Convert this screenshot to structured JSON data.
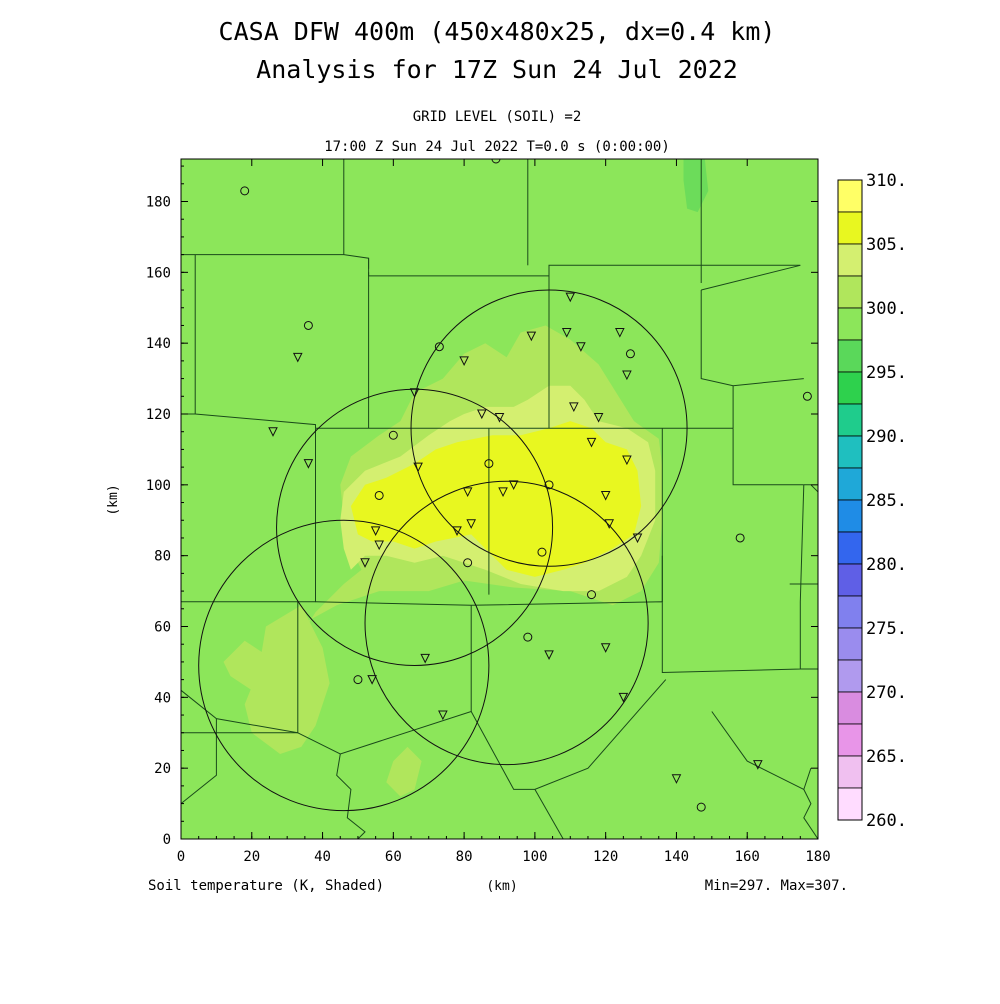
{
  "header": {
    "title_line1": "CASA DFW 400m (450x480x25, dx=0.4 km)",
    "title_line2": "Analysis for 17Z Sun 24 Jul 2022",
    "grid_level": "GRID LEVEL (SOIL) =2",
    "valid_time": "17:00 Z Sun 24 Jul 2022   T=0.0 s (0:00:00)"
  },
  "footer": {
    "field_label": "Soil temperature (K, Shaded)",
    "x_unit": "(km)",
    "minmax": "Min=297. Max=307."
  },
  "chart_data": {
    "type": "heatmap",
    "xlabel": "(km)",
    "ylabel": "(km)",
    "xlim": [
      0,
      180
    ],
    "ylim": [
      0,
      192
    ],
    "x_ticks": [
      0,
      20,
      40,
      60,
      80,
      100,
      120,
      140,
      160,
      180
    ],
    "y_ticks": [
      0,
      20,
      40,
      60,
      80,
      100,
      120,
      140,
      160,
      180
    ],
    "colorbar": {
      "labels": [
        "310.",
        "305.",
        "305.",
        "300.",
        "300.",
        "295.",
        "295.",
        "290.",
        "290.",
        "285.",
        "285.",
        "280.",
        "280.",
        "275.",
        "275.",
        "270.",
        "270.",
        "265.",
        "265.",
        "260."
      ],
      "colors": [
        "#ffff66",
        "#e8f720",
        "#d4ef70",
        "#b0e65c",
        "#8ce65a",
        "#5ad85a",
        "#2ed14d",
        "#1fcc8c",
        "#1fbfbf",
        "#1fa8d8",
        "#1f8ce6",
        "#3366ee",
        "#5f5fe6",
        "#8080ee",
        "#9a8cee",
        "#b09aee",
        "#d98ce0",
        "#e895e8",
        "#f0c0f0",
        "#ffdcff"
      ]
    },
    "field_levels": [
      {
        "level": 297.5,
        "color": "#8ce65a"
      },
      {
        "level": 300,
        "color": "#b0e65c"
      },
      {
        "level": 302.5,
        "color": "#d4ef70"
      },
      {
        "level": 305,
        "color": "#e8f720"
      }
    ],
    "radar_rings_km": [
      {
        "cx": 104,
        "cy": 116,
        "r": 39
      },
      {
        "cx": 66,
        "cy": 88,
        "r": 39
      },
      {
        "cx": 92,
        "cy": 61,
        "r": 40
      },
      {
        "cx": 46,
        "cy": 49,
        "r": 41
      }
    ],
    "stations_triangle": [
      [
        110,
        153
      ],
      [
        109,
        143
      ],
      [
        113,
        139
      ],
      [
        124,
        143
      ],
      [
        126,
        131
      ],
      [
        99,
        142
      ],
      [
        80,
        135
      ],
      [
        66,
        126
      ],
      [
        111,
        122
      ],
      [
        118,
        119
      ],
      [
        85,
        120
      ],
      [
        90,
        119
      ],
      [
        116,
        112
      ],
      [
        126,
        107
      ],
      [
        67,
        105
      ],
      [
        120,
        97
      ],
      [
        121,
        89
      ],
      [
        129,
        85
      ],
      [
        91,
        98
      ],
      [
        94,
        100
      ],
      [
        81,
        98
      ],
      [
        82,
        89
      ],
      [
        78,
        87
      ],
      [
        55,
        87
      ],
      [
        56,
        83
      ],
      [
        52,
        78
      ],
      [
        26,
        115
      ],
      [
        36,
        106
      ],
      [
        33,
        136
      ],
      [
        69,
        51
      ],
      [
        74,
        35
      ],
      [
        104,
        52
      ],
      [
        120,
        54
      ],
      [
        125,
        40
      ],
      [
        140,
        17
      ],
      [
        163,
        21
      ]
    ],
    "stations_circle": [
      [
        18,
        183
      ],
      [
        36,
        145
      ],
      [
        73,
        139
      ],
      [
        127,
        137
      ],
      [
        60,
        114
      ],
      [
        87,
        106
      ],
      [
        56,
        97
      ],
      [
        104,
        100
      ],
      [
        102,
        81
      ],
      [
        81,
        78
      ],
      [
        116,
        69
      ],
      [
        98,
        57
      ],
      [
        50,
        45
      ],
      [
        158,
        85
      ],
      [
        177,
        125
      ],
      [
        147,
        9
      ]
    ],
    "stations_circle_rings": [
      [
        89,
        192
      ]
    ],
    "stations_inverted_single": [
      [
        54,
        45
      ]
    ]
  }
}
